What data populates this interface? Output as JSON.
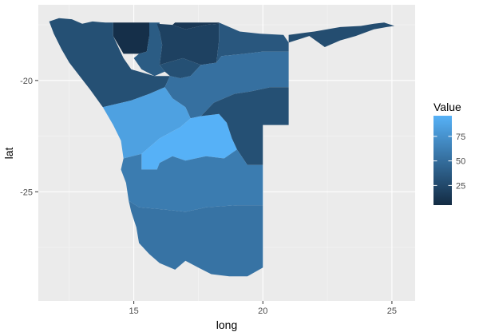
{
  "chart_data": {
    "type": "choropleth",
    "xlabel": "long",
    "ylabel": "lat",
    "xlim": [
      11.3,
      25.9
    ],
    "ylim": [
      -29.9,
      -16.6
    ],
    "x_ticks": [
      {
        "value": 15,
        "label": "15"
      },
      {
        "value": 20,
        "label": "20"
      },
      {
        "value": 25,
        "label": "25"
      }
    ],
    "y_ticks": [
      {
        "value": -20,
        "label": "-20"
      },
      {
        "value": -25,
        "label": "-25"
      }
    ],
    "x_minor": [
      12.5,
      17.5,
      22.5
    ],
    "y_minor": [
      -17.5,
      -22.5,
      -27.5
    ],
    "grid": true,
    "legend": {
      "title": "Value",
      "position": "right",
      "range": [
        5,
        96
      ],
      "ticks": [
        {
          "value": 25,
          "label": "25"
        },
        {
          "value": 50,
          "label": "50"
        },
        {
          "value": 75,
          "label": "75"
        }
      ],
      "low_color": "#132B43",
      "high_color": "#56B1F7"
    },
    "regions": [
      {
        "value": 30,
        "points": [
          [
            11.72,
            -17.35
          ],
          [
            12.1,
            -17.2
          ],
          [
            12.6,
            -17.25
          ],
          [
            13.0,
            -17.45
          ],
          [
            13.4,
            -17.35
          ],
          [
            13.9,
            -17.4
          ],
          [
            14.2,
            -17.4
          ],
          [
            14.2,
            -18.0
          ],
          [
            14.6,
            -19.0
          ],
          [
            14.9,
            -19.5
          ],
          [
            15.8,
            -19.8
          ],
          [
            16.4,
            -19.8
          ],
          [
            16.2,
            -20.3
          ],
          [
            15.6,
            -20.6
          ],
          [
            14.9,
            -20.9
          ],
          [
            13.8,
            -21.2
          ],
          [
            13.3,
            -20.4
          ],
          [
            12.9,
            -19.8
          ],
          [
            12.5,
            -19.2
          ],
          [
            12.2,
            -18.6
          ],
          [
            11.9,
            -17.9
          ]
        ]
      },
      {
        "value": 8,
        "points": [
          [
            14.2,
            -17.4
          ],
          [
            14.9,
            -17.4
          ],
          [
            15.6,
            -17.4
          ],
          [
            15.6,
            -18.0
          ],
          [
            15.5,
            -18.7
          ],
          [
            15.2,
            -18.8
          ],
          [
            14.6,
            -18.8
          ],
          [
            14.4,
            -18.4
          ],
          [
            14.2,
            -18.0
          ]
        ]
      },
      {
        "value": 38,
        "points": [
          [
            15.6,
            -17.4
          ],
          [
            16.0,
            -17.4
          ],
          [
            16.0,
            -17.8
          ],
          [
            16.1,
            -18.4
          ],
          [
            16.0,
            -19.3
          ],
          [
            16.2,
            -19.6
          ],
          [
            15.8,
            -19.8
          ],
          [
            15.3,
            -19.5
          ],
          [
            15.0,
            -19.0
          ],
          [
            15.2,
            -18.8
          ],
          [
            15.5,
            -18.7
          ],
          [
            15.6,
            -18.0
          ]
        ]
      },
      {
        "value": 20,
        "points": [
          [
            15.9,
            -17.45
          ],
          [
            16.5,
            -17.5
          ],
          [
            17.0,
            -17.7
          ],
          [
            17.8,
            -17.5
          ],
          [
            18.3,
            -17.45
          ],
          [
            18.3,
            -18.2
          ],
          [
            18.2,
            -19.2
          ],
          [
            17.6,
            -19.3
          ],
          [
            16.9,
            -19.0
          ],
          [
            16.0,
            -19.3
          ],
          [
            16.1,
            -18.4
          ],
          [
            16.0,
            -17.8
          ]
        ]
      },
      {
        "value": 14,
        "points": [
          [
            16.6,
            -17.4
          ],
          [
            17.3,
            -17.4
          ],
          [
            18.3,
            -17.4
          ],
          [
            18.3,
            -17.45
          ],
          [
            17.8,
            -17.5
          ],
          [
            17.0,
            -17.7
          ],
          [
            16.5,
            -17.5
          ]
        ]
      },
      {
        "value": 30,
        "points": [
          [
            16.2,
            -19.6
          ],
          [
            16.0,
            -19.3
          ],
          [
            16.9,
            -19.0
          ],
          [
            17.6,
            -19.3
          ],
          [
            17.2,
            -19.8
          ],
          [
            16.8,
            -19.9
          ],
          [
            16.4,
            -19.8
          ]
        ]
      },
      {
        "value": 35,
        "points": [
          [
            18.3,
            -17.4
          ],
          [
            19.1,
            -17.8
          ],
          [
            19.9,
            -17.9
          ],
          [
            20.8,
            -17.95
          ],
          [
            21.0,
            -18.3
          ],
          [
            21.0,
            -18.7
          ],
          [
            20.0,
            -18.7
          ],
          [
            19.3,
            -18.8
          ],
          [
            18.4,
            -18.9
          ],
          [
            18.2,
            -19.2
          ],
          [
            18.3,
            -18.2
          ]
        ]
      },
      {
        "value": 28,
        "points": [
          [
            21.0,
            -17.95
          ],
          [
            22.0,
            -17.8
          ],
          [
            23.0,
            -17.6
          ],
          [
            23.8,
            -17.55
          ],
          [
            24.3,
            -17.45
          ],
          [
            24.7,
            -17.4
          ],
          [
            25.1,
            -17.55
          ],
          [
            24.8,
            -17.6
          ],
          [
            24.3,
            -17.7
          ],
          [
            23.6,
            -18.0
          ],
          [
            23.0,
            -18.2
          ],
          [
            22.4,
            -18.5
          ],
          [
            21.8,
            -18.0
          ],
          [
            21.0,
            -18.3
          ]
        ]
      },
      {
        "value": 52,
        "points": [
          [
            18.2,
            -19.2
          ],
          [
            18.4,
            -18.9
          ],
          [
            19.3,
            -18.8
          ],
          [
            20.0,
            -18.7
          ],
          [
            21.0,
            -18.7
          ],
          [
            21.0,
            -19.2
          ],
          [
            21.0,
            -20.3
          ],
          [
            20.3,
            -20.3
          ],
          [
            19.5,
            -20.5
          ],
          [
            18.9,
            -20.6
          ],
          [
            18.1,
            -21.0
          ],
          [
            17.6,
            -21.6
          ],
          [
            17.2,
            -21.7
          ],
          [
            17.0,
            -21.2
          ],
          [
            16.5,
            -20.8
          ],
          [
            16.2,
            -20.3
          ],
          [
            16.4,
            -19.8
          ],
          [
            16.8,
            -19.9
          ],
          [
            17.2,
            -19.8
          ],
          [
            17.6,
            -19.3
          ]
        ]
      },
      {
        "value": 85,
        "points": [
          [
            13.8,
            -21.2
          ],
          [
            14.9,
            -20.9
          ],
          [
            15.6,
            -20.6
          ],
          [
            16.2,
            -20.3
          ],
          [
            16.5,
            -20.8
          ],
          [
            17.0,
            -21.2
          ],
          [
            17.2,
            -21.7
          ],
          [
            16.8,
            -22.1
          ],
          [
            16.0,
            -22.6
          ],
          [
            15.3,
            -23.3
          ],
          [
            14.6,
            -23.5
          ],
          [
            14.5,
            -22.7
          ],
          [
            14.2,
            -22.0
          ]
        ]
      },
      {
        "value": 96,
        "points": [
          [
            15.3,
            -23.3
          ],
          [
            16.0,
            -22.6
          ],
          [
            16.8,
            -22.1
          ],
          [
            17.2,
            -21.7
          ],
          [
            17.6,
            -21.6
          ],
          [
            18.3,
            -21.5
          ],
          [
            18.6,
            -21.9
          ],
          [
            18.8,
            -22.6
          ],
          [
            19.0,
            -23.1
          ],
          [
            18.5,
            -23.5
          ],
          [
            17.8,
            -23.4
          ],
          [
            17.0,
            -23.6
          ],
          [
            16.5,
            -23.4
          ],
          [
            16.0,
            -23.7
          ],
          [
            15.9,
            -24.0
          ],
          [
            15.3,
            -24.0
          ]
        ]
      },
      {
        "value": 30,
        "points": [
          [
            18.1,
            -21.0
          ],
          [
            18.9,
            -20.6
          ],
          [
            19.5,
            -20.5
          ],
          [
            20.3,
            -20.3
          ],
          [
            21.0,
            -20.3
          ],
          [
            21.0,
            -21.2
          ],
          [
            21.0,
            -22.0
          ],
          [
            20.0,
            -22.0
          ],
          [
            20.0,
            -23.0
          ],
          [
            20.0,
            -23.8
          ],
          [
            19.4,
            -23.8
          ],
          [
            19.0,
            -23.1
          ],
          [
            18.8,
            -22.6
          ],
          [
            18.6,
            -21.9
          ],
          [
            18.3,
            -21.5
          ],
          [
            17.6,
            -21.6
          ]
        ]
      },
      {
        "value": 60,
        "points": [
          [
            14.6,
            -23.5
          ],
          [
            15.3,
            -23.3
          ],
          [
            15.3,
            -24.0
          ],
          [
            15.9,
            -24.0
          ],
          [
            16.0,
            -23.7
          ],
          [
            16.5,
            -23.4
          ],
          [
            17.0,
            -23.6
          ],
          [
            17.8,
            -23.4
          ],
          [
            18.5,
            -23.5
          ],
          [
            19.0,
            -23.1
          ],
          [
            19.4,
            -23.8
          ],
          [
            20.0,
            -23.8
          ],
          [
            20.0,
            -25.0
          ],
          [
            20.0,
            -25.6
          ],
          [
            19.0,
            -25.6
          ],
          [
            17.8,
            -25.7
          ],
          [
            17.0,
            -25.9
          ],
          [
            16.2,
            -25.8
          ],
          [
            15.2,
            -25.7
          ],
          [
            14.8,
            -25.4
          ],
          [
            14.7,
            -24.6
          ],
          [
            14.5,
            -24.0
          ]
        ]
      },
      {
        "value": 54,
        "points": [
          [
            14.8,
            -25.4
          ],
          [
            15.2,
            -25.7
          ],
          [
            16.2,
            -25.8
          ],
          [
            17.0,
            -25.9
          ],
          [
            17.8,
            -25.7
          ],
          [
            19.0,
            -25.6
          ],
          [
            20.0,
            -25.6
          ],
          [
            20.0,
            -26.5
          ],
          [
            20.0,
            -27.5
          ],
          [
            20.0,
            -28.4
          ],
          [
            19.4,
            -28.8
          ],
          [
            18.7,
            -28.8
          ],
          [
            18.0,
            -28.7
          ],
          [
            17.5,
            -28.4
          ],
          [
            17.0,
            -28.1
          ],
          [
            16.6,
            -28.5
          ],
          [
            16.0,
            -28.2
          ],
          [
            15.6,
            -27.8
          ],
          [
            15.2,
            -27.3
          ],
          [
            15.1,
            -26.6
          ],
          [
            14.9,
            -25.9
          ]
        ]
      }
    ]
  }
}
